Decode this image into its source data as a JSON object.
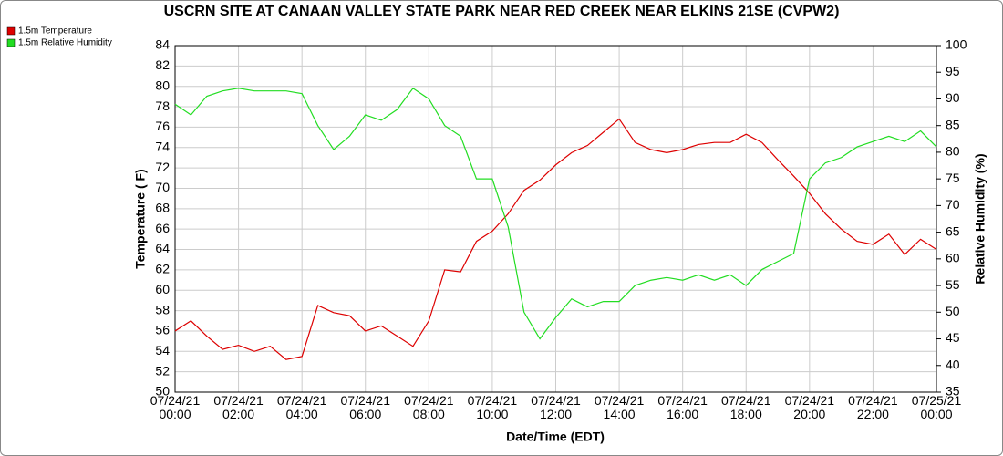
{
  "chart_data": {
    "type": "line",
    "title": "USCRN SITE AT CANAAN VALLEY STATE PARK NEAR RED CREEK NEAR ELKINS 21SE (CVPW2)",
    "xlabel": "Date/Time (EDT)",
    "ylabel": "Temperature ( F)",
    "y2label": "Relative Humidity (%)",
    "x": [
      0,
      0.5,
      1,
      1.5,
      2,
      2.5,
      3,
      3.5,
      4,
      4.5,
      5,
      5.5,
      6,
      6.5,
      7,
      7.5,
      8,
      8.5,
      9,
      9.5,
      10,
      10.5,
      11,
      11.5,
      12,
      12.5,
      13,
      13.5,
      14,
      14.5,
      15,
      15.5,
      16,
      16.5,
      17,
      17.5,
      18,
      18.5,
      19,
      19.5,
      20,
      20.5,
      21,
      21.5,
      22,
      22.5,
      23,
      23.5,
      24
    ],
    "xlim": [
      0,
      24
    ],
    "xticks": [
      {
        "value": 0,
        "label": "07/24/21\n00:00"
      },
      {
        "value": 2,
        "label": "07/24/21\n02:00"
      },
      {
        "value": 4,
        "label": "07/24/21\n04:00"
      },
      {
        "value": 6,
        "label": "07/24/21\n06:00"
      },
      {
        "value": 8,
        "label": "07/24/21\n08:00"
      },
      {
        "value": 10,
        "label": "07/24/21\n10:00"
      },
      {
        "value": 12,
        "label": "07/24/21\n12:00"
      },
      {
        "value": 14,
        "label": "07/24/21\n14:00"
      },
      {
        "value": 16,
        "label": "07/24/21\n16:00"
      },
      {
        "value": 18,
        "label": "07/24/21\n18:00"
      },
      {
        "value": 20,
        "label": "07/24/21\n20:00"
      },
      {
        "value": 22,
        "label": "07/24/21\n22:00"
      },
      {
        "value": 24,
        "label": "07/25/21\n00:00"
      }
    ],
    "ylim": [
      50,
      84
    ],
    "yticks": [
      50,
      52,
      54,
      56,
      58,
      60,
      62,
      64,
      66,
      68,
      70,
      72,
      74,
      76,
      78,
      80,
      82,
      84
    ],
    "y2lim": [
      35,
      100
    ],
    "y2ticks": [
      35,
      40,
      45,
      50,
      55,
      60,
      65,
      70,
      75,
      80,
      85,
      90,
      95,
      100
    ],
    "grid": true,
    "legend": "top-left",
    "series": [
      {
        "name": "1.5m Temperature",
        "color": "#dd0000",
        "values": [
          56,
          57,
          55.5,
          54.2,
          54.6,
          54,
          54.5,
          53.2,
          53.5,
          58.5,
          57.8,
          57.5,
          56,
          56.5,
          55.5,
          54.5,
          57,
          62,
          61.8,
          64.8,
          65.8,
          67.5,
          69.8,
          70.8,
          72.3,
          73.5,
          74.2,
          75.5,
          76.8,
          74.5,
          73.8,
          73.5,
          73.8,
          74.3,
          74.5,
          74.5,
          75.3,
          74.5,
          72.8,
          71.2,
          69.5,
          67.5,
          66,
          64.8,
          64.5,
          65.5,
          63.5,
          65,
          64
        ]
      },
      {
        "name": "1.5m Relative Humidity",
        "color": "#22dd22",
        "axis": "y2",
        "values": [
          89,
          87,
          90.5,
          91.5,
          92,
          91.5,
          91.5,
          91.5,
          91,
          85,
          80.5,
          83,
          87,
          86,
          88,
          92,
          90,
          85,
          83,
          75,
          75,
          66,
          50,
          45,
          49,
          52.5,
          51,
          52,
          52,
          55,
          56,
          56.5,
          56,
          57,
          56,
          57,
          55,
          58,
          59.5,
          61,
          75,
          78,
          79,
          81,
          82,
          83,
          82,
          84,
          81
        ]
      }
    ]
  }
}
